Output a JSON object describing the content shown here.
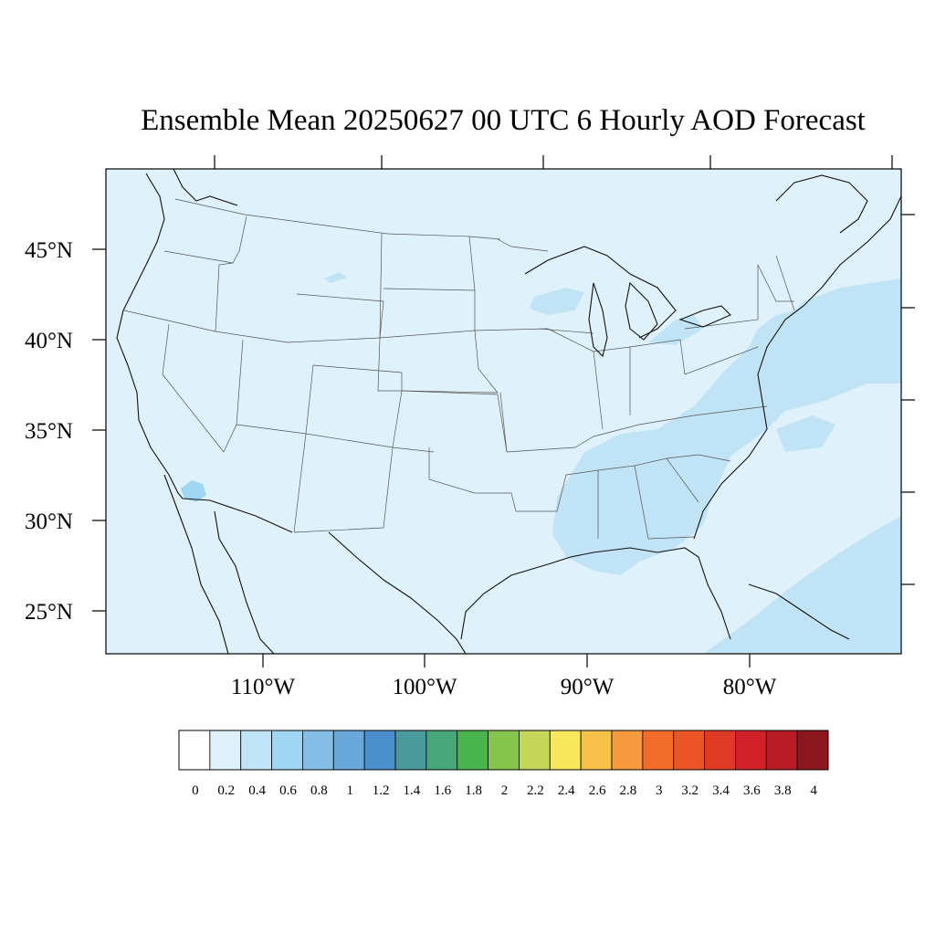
{
  "title": "Ensemble Mean 20250627 00 UTC 6 Hourly AOD Forecast",
  "map": {
    "region": "Continental United States",
    "projection": "Lambert conformal",
    "background_aod_color": "#dff2fb",
    "elevated_aod_color": "#c0e4f5",
    "plume_color": "#9fd7f3",
    "lat_labels": [
      "45°N",
      "40°N",
      "35°N",
      "30°N",
      "25°N"
    ],
    "lon_labels": [
      "110°W",
      "100°W",
      "90°W",
      "80°W"
    ]
  },
  "colorbar": {
    "labels": [
      "0",
      "0.2",
      "0.4",
      "0.6",
      "0.8",
      "1",
      "1.2",
      "1.4",
      "1.6",
      "1.8",
      "2",
      "2.2",
      "2.4",
      "2.6",
      "2.8",
      "3",
      "3.2",
      "3.4",
      "3.6",
      "3.8",
      "4"
    ],
    "colors": [
      "#ffffff",
      "#dff2fb",
      "#c0e4f5",
      "#9fd7f3",
      "#84bde6",
      "#68a8db",
      "#4a8fcb",
      "#4a9a9b",
      "#47a67a",
      "#48b44b",
      "#86c44d",
      "#c4d657",
      "#f7e75a",
      "#f6c04b",
      "#f59a3e",
      "#f26c2c",
      "#ea5427",
      "#de3a26",
      "#d02028",
      "#b61b26",
      "#8b161d"
    ]
  }
}
